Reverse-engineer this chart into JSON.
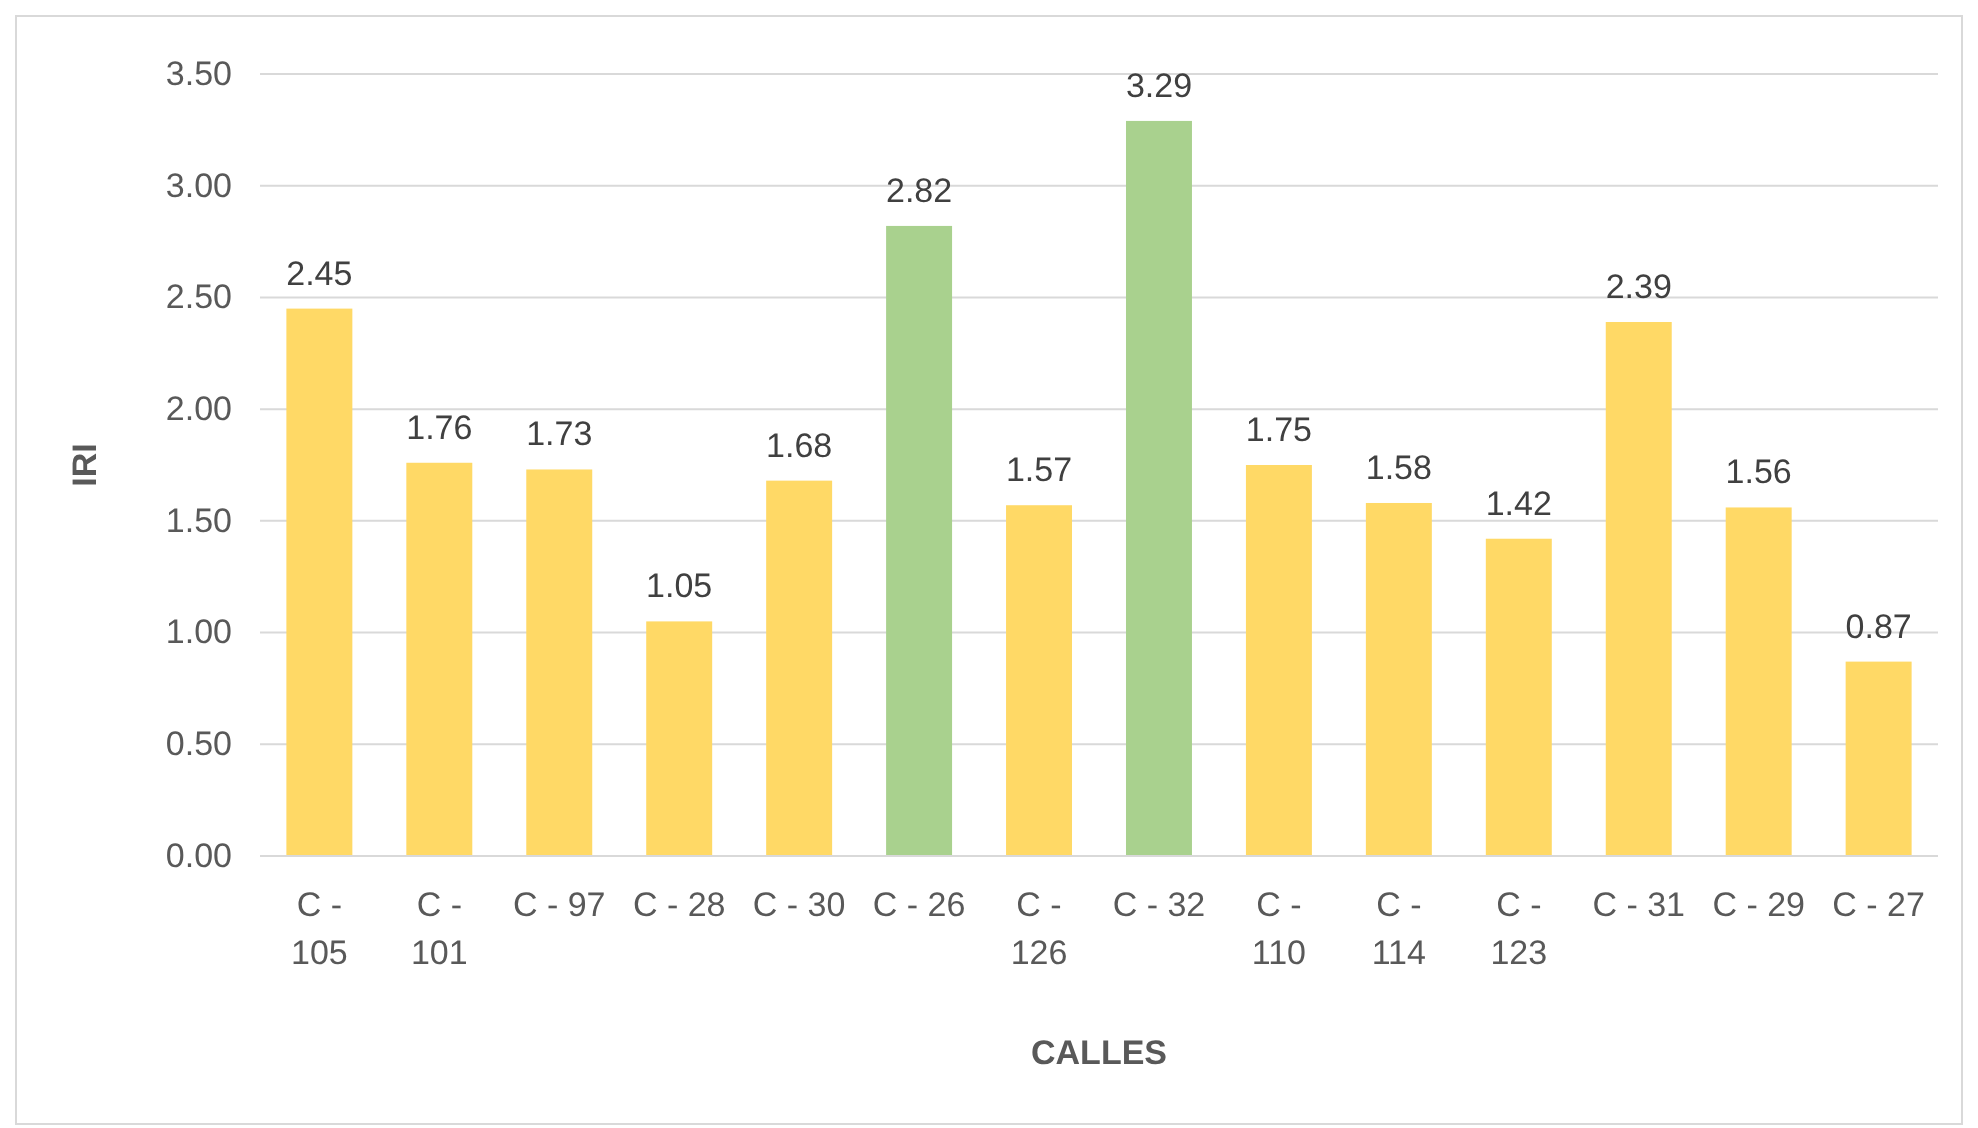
{
  "chart_data": {
    "type": "bar",
    "categories": [
      "C - 105",
      "C - 101",
      "C - 97",
      "C - 28",
      "C - 30",
      "C - 26",
      "C - 126",
      "C - 32",
      "C - 110",
      "C - 114",
      "C - 123",
      "C - 31",
      "C - 29",
      "C - 27"
    ],
    "values": [
      2.45,
      1.76,
      1.73,
      1.05,
      1.68,
      2.82,
      1.57,
      3.29,
      1.75,
      1.58,
      1.42,
      2.39,
      1.56,
      0.87
    ],
    "colors": [
      "#ffd966",
      "#ffd966",
      "#ffd966",
      "#ffd966",
      "#ffd966",
      "#a9d18e",
      "#ffd966",
      "#a9d18e",
      "#ffd966",
      "#ffd966",
      "#ffd966",
      "#ffd966",
      "#ffd966",
      "#ffd966"
    ],
    "xlabel": "CALLES",
    "ylabel": "IRI",
    "ylim": [
      0,
      3.5
    ],
    "yticks": [
      {
        "value": 0,
        "label": "0.00"
      },
      {
        "value": 0.5,
        "label": "0.50"
      },
      {
        "value": 1,
        "label": "1.00"
      },
      {
        "value": 1.5,
        "label": "1.50"
      },
      {
        "value": 2,
        "label": "2.00"
      },
      {
        "value": 2.5,
        "label": "2.50"
      },
      {
        "value": 3,
        "label": "3.00"
      },
      {
        "value": 3.5,
        "label": "3.50"
      }
    ],
    "grid": "y",
    "data_labels": true
  }
}
